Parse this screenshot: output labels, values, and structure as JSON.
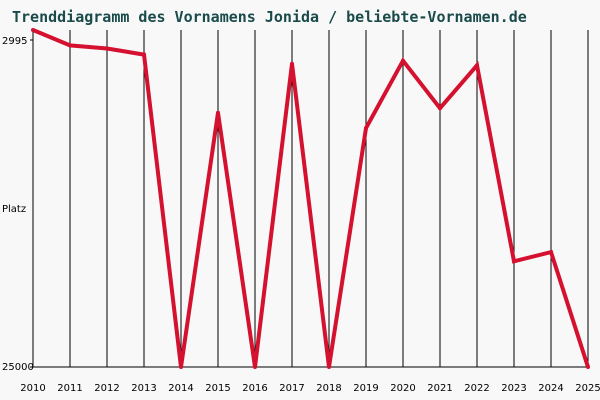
{
  "chart_data": {
    "type": "line",
    "title": "Trenddiagramm des Vornamens Jonida / beliebte-Vornamen.de",
    "xlabel": "",
    "ylabel": "Platz",
    "y_axis_inverted": true,
    "ylim": [
      2995,
      25000
    ],
    "y_tick_labels": [
      "2995",
      "25000"
    ],
    "x": [
      2010,
      2011,
      2012,
      2013,
      2014,
      2015,
      2016,
      2017,
      2018,
      2019,
      2020,
      2021,
      2022,
      2023,
      2024,
      2025
    ],
    "series": [
      {
        "name": "",
        "values": [
          2995,
          4000,
          4200,
          4600,
          25000,
          8400,
          25000,
          5200,
          25000,
          9400,
          5000,
          8100,
          5300,
          18100,
          17500,
          25000
        ]
      }
    ],
    "grid": {
      "vertical": true,
      "horizontal": false
    },
    "colors": {
      "line": "#d4112f",
      "title": "#1a4a4a",
      "grid": "#000000",
      "background": "#f8f8f8"
    }
  }
}
